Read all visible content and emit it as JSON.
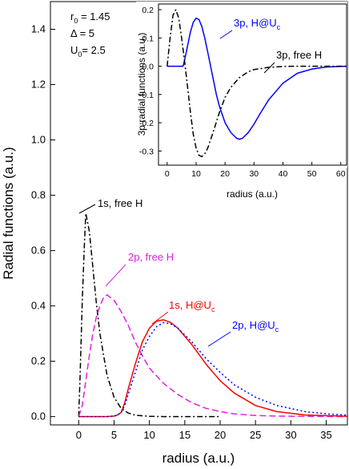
{
  "chart_data": [
    {
      "type": "line",
      "xlabel": "radius (a.u.)",
      "ylabel": "Radial functions (a.u.)",
      "xlim": [
        -4,
        38
      ],
      "ylim": [
        -0.03,
        1.5
      ],
      "xticks": [
        "0",
        "5",
        "10",
        "15",
        "20",
        "25",
        "30",
        "35"
      ],
      "yticks": [
        "0.0",
        "0.2",
        "0.4",
        "0.6",
        "0.8",
        "1.0",
        "1.2",
        "1.4"
      ],
      "parameters": {
        "r0": "1.45",
        "delta": "5",
        "u0": "2.5"
      },
      "series": [
        {
          "name": "1s, free H",
          "color": "#000000",
          "style": "dash-dot",
          "x": [
            0,
            0.2,
            0.5,
            0.8,
            1.0,
            1.5,
            2,
            2.5,
            3,
            4,
            5,
            6,
            7,
            8,
            10,
            12,
            15,
            20
          ],
          "y": [
            0,
            0.15,
            0.42,
            0.62,
            0.735,
            0.67,
            0.54,
            0.41,
            0.3,
            0.15,
            0.07,
            0.03,
            0.013,
            0.005,
            0.001,
            0,
            0,
            0
          ]
        },
        {
          "name": "2p, free H",
          "color": "#e020e0",
          "style": "dash",
          "x": [
            0,
            0.5,
            1,
            1.5,
            2,
            2.5,
            3,
            3.5,
            4,
            5,
            6,
            7,
            8,
            9,
            10,
            12,
            14,
            16,
            18,
            20,
            22,
            25,
            28,
            32,
            38
          ],
          "y": [
            0,
            0.04,
            0.13,
            0.22,
            0.3,
            0.36,
            0.4,
            0.43,
            0.44,
            0.42,
            0.38,
            0.33,
            0.27,
            0.22,
            0.175,
            0.12,
            0.08,
            0.05,
            0.03,
            0.018,
            0.01,
            0.004,
            0.002,
            0.001,
            0
          ]
        },
        {
          "name": "1s, H@U",
          "name_subscript": "c",
          "color": "#ff0000",
          "style": "solid",
          "x": [
            0,
            4,
            5,
            5.5,
            6,
            6.5,
            7,
            8,
            9,
            10,
            11,
            12,
            13,
            14,
            16,
            18,
            20,
            22,
            25,
            28,
            32,
            38
          ],
          "y": [
            0,
            0,
            0.002,
            0.006,
            0.015,
            0.05,
            0.1,
            0.19,
            0.27,
            0.32,
            0.345,
            0.35,
            0.34,
            0.32,
            0.26,
            0.19,
            0.13,
            0.085,
            0.04,
            0.018,
            0.006,
            0.001
          ]
        },
        {
          "name": "2p, H@U",
          "name_subscript": "c",
          "color": "#0000ff",
          "style": "dot",
          "x": [
            0,
            4,
            5,
            5.5,
            6,
            6.5,
            7,
            8,
            9,
            10,
            11,
            12,
            13,
            14,
            16,
            18,
            20,
            22,
            25,
            28,
            32,
            35,
            38
          ],
          "y": [
            0,
            0,
            0.002,
            0.006,
            0.015,
            0.04,
            0.08,
            0.16,
            0.24,
            0.29,
            0.325,
            0.34,
            0.335,
            0.32,
            0.27,
            0.21,
            0.16,
            0.115,
            0.07,
            0.04,
            0.018,
            0.01,
            0.005
          ]
        }
      ]
    },
    {
      "type": "line",
      "xlabel": "radius (a.u.)",
      "ylabel": "3p radial functions (a.u.)",
      "xlim": [
        -3,
        62
      ],
      "ylim": [
        -0.35,
        0.22
      ],
      "xticks": [
        "0",
        "10",
        "20",
        "30",
        "40",
        "50",
        "60"
      ],
      "yticks": [
        "-0.3",
        "-0.2",
        "-0.1",
        "0.0",
        "0.1",
        "0.2"
      ],
      "series": [
        {
          "name": "3p, H@U",
          "name_subscript": "c",
          "color": "#0000ff",
          "style": "solid",
          "x": [
            0,
            4,
            5.5,
            6,
            7,
            8,
            9,
            10,
            11,
            12,
            13,
            14,
            15,
            16,
            17,
            18,
            20,
            22,
            24,
            25,
            26,
            28,
            30,
            32,
            35,
            40,
            45,
            50,
            55,
            60,
            62
          ],
          "y": [
            0,
            0,
            0,
            0.02,
            0.07,
            0.12,
            0.155,
            0.17,
            0.165,
            0.14,
            0.1,
            0.05,
            0.0,
            -0.05,
            -0.1,
            -0.14,
            -0.2,
            -0.235,
            -0.255,
            -0.258,
            -0.255,
            -0.235,
            -0.205,
            -0.17,
            -0.12,
            -0.06,
            -0.025,
            -0.01,
            -0.003,
            -0.001,
            0
          ]
        },
        {
          "name": "3p, free H",
          "color": "#000000",
          "style": "dash-dot",
          "x": [
            0,
            1,
            2,
            3,
            4,
            5,
            6,
            7,
            8,
            9,
            10,
            11,
            12,
            13,
            14,
            15,
            16,
            18,
            20,
            22,
            25,
            28,
            30,
            35,
            40,
            45,
            50,
            55,
            60,
            62
          ],
          "y": [
            0,
            0.1,
            0.18,
            0.2,
            0.17,
            0.1,
            0.02,
            -0.07,
            -0.16,
            -0.24,
            -0.29,
            -0.315,
            -0.32,
            -0.31,
            -0.29,
            -0.26,
            -0.23,
            -0.165,
            -0.11,
            -0.075,
            -0.04,
            -0.02,
            -0.012,
            -0.004,
            -0.001,
            0,
            0,
            0,
            0,
            0
          ]
        }
      ]
    }
  ]
}
